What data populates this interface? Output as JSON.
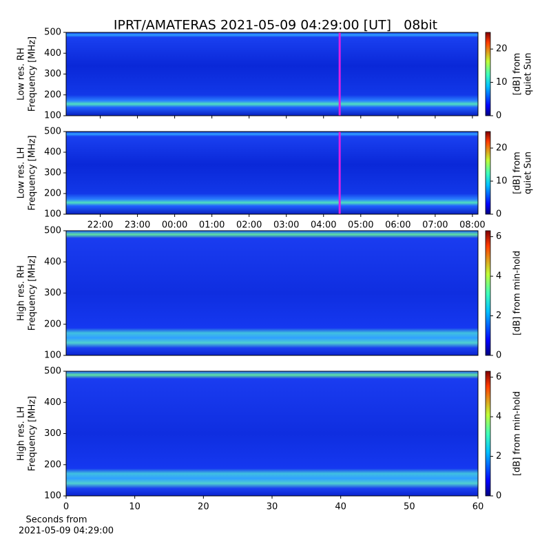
{
  "chart_data": {
    "title": "IPRT/AMATERAS 2021-05-09 04:29:00 [UT]   08bit",
    "panels": [
      {
        "type": "heatmap",
        "ylabel": [
          "Low res. RH",
          "Frequency [MHz]"
        ],
        "ylim": [
          100,
          500
        ],
        "yticks": [
          100,
          200,
          300,
          400,
          500
        ],
        "xlim": [
          "21:05",
          "08:09"
        ],
        "marker": {
          "x": "04:26",
          "color": "#e020e0"
        },
        "clim": [
          0,
          25
        ],
        "cticks": [
          0,
          10,
          20
        ],
        "clabel": [
          "[dB] from",
          "quiet Sun"
        ]
      },
      {
        "type": "heatmap",
        "ylabel": [
          "Low res. LH",
          "Frequency [MHz]"
        ],
        "ylim": [
          100,
          500
        ],
        "yticks": [
          100,
          200,
          300,
          400,
          500
        ],
        "xlim": [
          "21:05",
          "08:09"
        ],
        "xticks": [
          "22:00",
          "23:00",
          "00:00",
          "01:00",
          "02:00",
          "03:00",
          "04:00",
          "05:00",
          "06:00",
          "07:00",
          "08:00"
        ],
        "marker": {
          "x": "04:26",
          "color": "#e020e0"
        },
        "clim": [
          0,
          25
        ],
        "cticks": [
          0,
          10,
          20
        ],
        "clabel": [
          "[dB] from",
          "quiet Sun"
        ]
      },
      {
        "type": "heatmap",
        "ylabel": [
          "High res. RH",
          "Frequency [MHz]"
        ],
        "ylim": [
          100,
          500
        ],
        "yticks": [
          100,
          200,
          300,
          400,
          500
        ],
        "xlim": [
          0,
          60
        ],
        "clim": [
          0,
          6.3
        ],
        "cticks": [
          0,
          2,
          4,
          6
        ],
        "clabel": [
          "[dB] from min-hold"
        ]
      },
      {
        "type": "heatmap",
        "ylabel": [
          "High res. LH",
          "Frequency [MHz]"
        ],
        "ylim": [
          100,
          500
        ],
        "yticks": [
          100,
          200,
          300,
          400,
          500
        ],
        "xlim": [
          0,
          60
        ],
        "xticks": [
          0,
          10,
          20,
          30,
          40,
          50,
          60
        ],
        "xlabel": [
          "Seconds from",
          "2021-05-09 04:29:00"
        ],
        "clim": [
          0,
          6.3
        ],
        "cticks": [
          0,
          2,
          4,
          6
        ],
        "clabel": [
          "[dB] from min-hold"
        ]
      }
    ]
  }
}
